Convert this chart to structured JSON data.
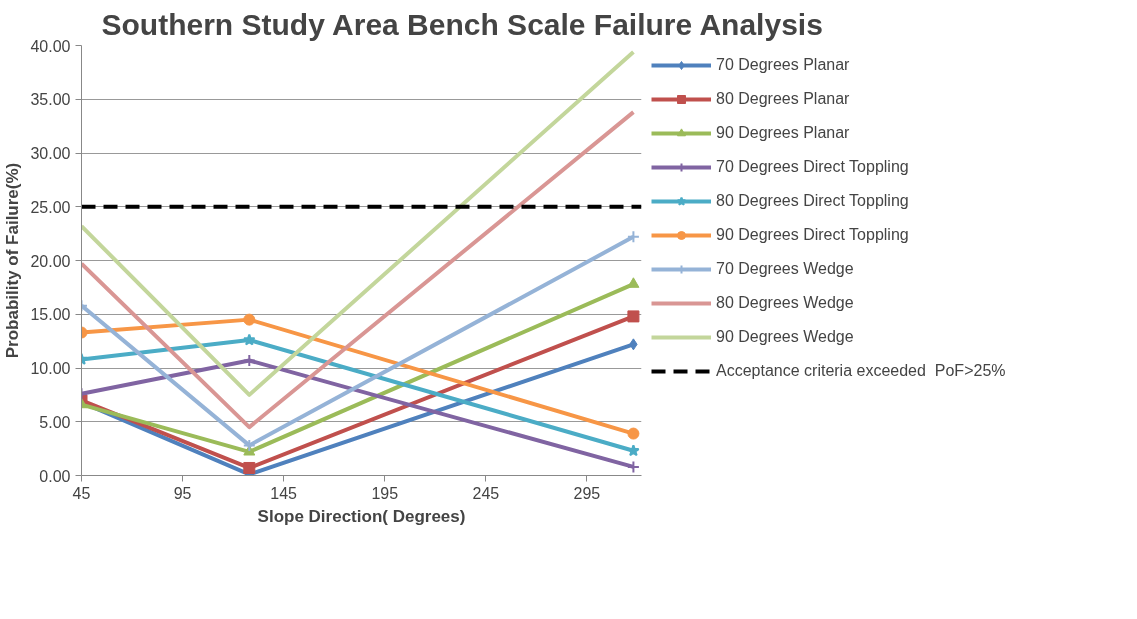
{
  "chart_data": {
    "type": "line",
    "title": "Southern Study Area Bench Scale Failure Analysis",
    "xlabel": "Slope Direction( Degrees)",
    "ylabel": "Probability of Failure(%)",
    "x": [
      45,
      128,
      318
    ],
    "xlim": [
      45,
      322
    ],
    "xticks": [
      45,
      95,
      145,
      195,
      245,
      295
    ],
    "ylim": [
      0,
      40
    ],
    "yticks": [
      {
        "value": 0,
        "label": "0.00"
      },
      {
        "value": 5,
        "label": "5.00"
      },
      {
        "value": 10,
        "label": "10.00"
      },
      {
        "value": 15,
        "label": "15.00"
      },
      {
        "value": 20,
        "label": "20.00"
      },
      {
        "value": 25,
        "label": "25.00"
      },
      {
        "value": 30,
        "label": "30.00"
      },
      {
        "value": 35,
        "label": "35.00"
      },
      {
        "value": 40,
        "label": "40.00"
      }
    ],
    "grid": "y",
    "legend": "right",
    "line_style": "solid",
    "series": [
      {
        "name": "70 Degrees Planar",
        "color": "#4f81bd",
        "marker": "diamond",
        "values": [
          6.8,
          0.1,
          12.2
        ]
      },
      {
        "name": "80 Degrees Planar",
        "color": "#c0504d",
        "marker": "square",
        "values": [
          7.0,
          0.7,
          14.8
        ]
      },
      {
        "name": "90 Degrees Planar",
        "color": "#9bbb59",
        "marker": "triangle",
        "values": [
          6.6,
          2.2,
          17.8
        ]
      },
      {
        "name": "70 Degrees Direct Toppling",
        "color": "#8064a2",
        "marker": "cross",
        "values": [
          7.6,
          10.7,
          0.8
        ]
      },
      {
        "name": "80 Degrees Direct Toppling",
        "color": "#4bacc6",
        "marker": "star",
        "values": [
          10.8,
          12.6,
          2.3
        ]
      },
      {
        "name": "90 Degrees Direct Toppling",
        "color": "#f79646",
        "marker": "circle",
        "values": [
          13.3,
          14.5,
          3.9
        ]
      },
      {
        "name": "70 Degrees Wedge",
        "color": "#95b3d7",
        "marker": "cross",
        "values": [
          15.8,
          2.8,
          22.2
        ]
      },
      {
        "name": "80 Degrees Wedge",
        "color": "#d99694",
        "marker": "none",
        "values": [
          19.7,
          4.5,
          33.8
        ]
      },
      {
        "name": "90 Degrees Wedge",
        "color": "#c3d69b",
        "marker": "none",
        "values": [
          23.2,
          7.5,
          39.4
        ]
      }
    ],
    "ref_lines": [
      {
        "axis": "y",
        "value": 25,
        "label": "Acceptance criteria exceeded  PoF>25%",
        "color": "#000000",
        "line_style": "dashed"
      }
    ]
  }
}
